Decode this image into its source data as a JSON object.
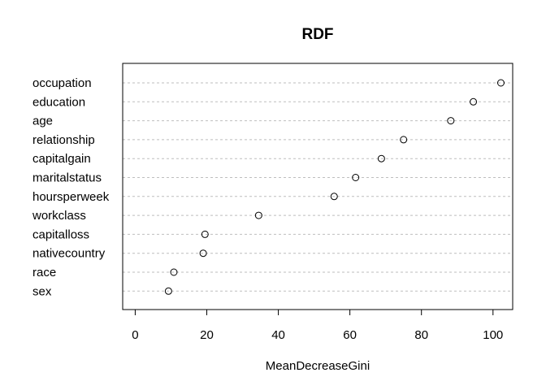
{
  "chart_data": {
    "type": "scatter",
    "title": "RDF",
    "xlabel": "MeanDecreaseGini",
    "ylabel": "",
    "xlim": [
      -3.5,
      105.5
    ],
    "x_ticks": [
      0,
      20,
      40,
      60,
      80,
      100
    ],
    "grid": "dotted horizontal lines per category",
    "marker": "open circle",
    "points": [
      {
        "label": "occupation",
        "value": 102.2
      },
      {
        "label": "education",
        "value": 94.5
      },
      {
        "label": "age",
        "value": 88.2
      },
      {
        "label": "relationship",
        "value": 75.0
      },
      {
        "label": "capitalgain",
        "value": 68.8
      },
      {
        "label": "maritalstatus",
        "value": 61.6
      },
      {
        "label": "hoursperweek",
        "value": 55.6
      },
      {
        "label": "workclass",
        "value": 34.5
      },
      {
        "label": "capitalloss",
        "value": 19.5
      },
      {
        "label": "nativecountry",
        "value": 19.0
      },
      {
        "label": "race",
        "value": 10.8
      },
      {
        "label": "sex",
        "value": 9.3
      }
    ]
  }
}
